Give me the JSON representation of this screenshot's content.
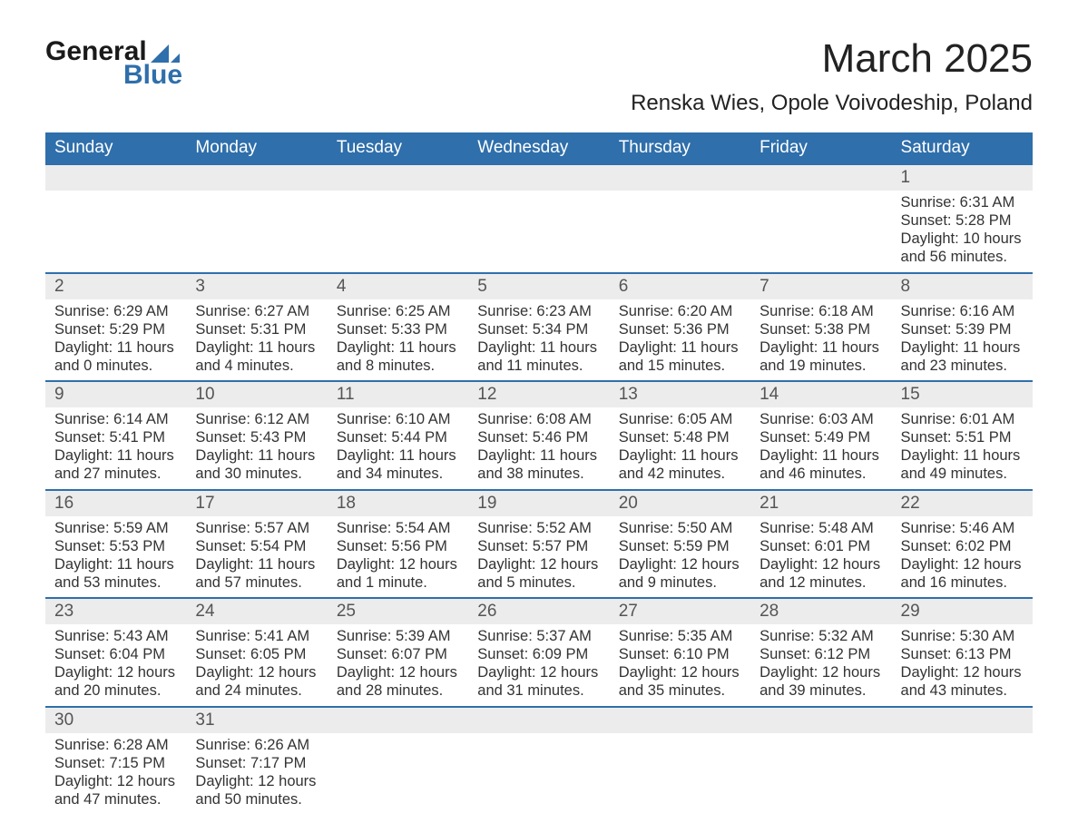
{
  "logo": {
    "line1": "General",
    "line2": "Blue",
    "icon_color": "#2f6fab"
  },
  "title": "March 2025",
  "location": "Renska Wies, Opole Voivodeship, Poland",
  "colors": {
    "header_bg": "#2f6fab",
    "header_text": "#ffffff",
    "daynum_bg": "#ececec",
    "row_divider": "#2f6fab",
    "body_text": "#333333",
    "page_bg": "#ffffff"
  },
  "typography": {
    "title_fontsize": 44,
    "location_fontsize": 24,
    "header_fontsize": 19,
    "daynum_fontsize": 19,
    "cell_fontsize": 16.5,
    "font_family": "Arial"
  },
  "calendar": {
    "type": "table",
    "columns": [
      "Sunday",
      "Monday",
      "Tuesday",
      "Wednesday",
      "Thursday",
      "Friday",
      "Saturday"
    ],
    "weeks": [
      [
        null,
        null,
        null,
        null,
        null,
        null,
        {
          "day": "1",
          "sunrise": "Sunrise: 6:31 AM",
          "sunset": "Sunset: 5:28 PM",
          "daylight1": "Daylight: 10 hours",
          "daylight2": "and 56 minutes."
        }
      ],
      [
        {
          "day": "2",
          "sunrise": "Sunrise: 6:29 AM",
          "sunset": "Sunset: 5:29 PM",
          "daylight1": "Daylight: 11 hours",
          "daylight2": "and 0 minutes."
        },
        {
          "day": "3",
          "sunrise": "Sunrise: 6:27 AM",
          "sunset": "Sunset: 5:31 PM",
          "daylight1": "Daylight: 11 hours",
          "daylight2": "and 4 minutes."
        },
        {
          "day": "4",
          "sunrise": "Sunrise: 6:25 AM",
          "sunset": "Sunset: 5:33 PM",
          "daylight1": "Daylight: 11 hours",
          "daylight2": "and 8 minutes."
        },
        {
          "day": "5",
          "sunrise": "Sunrise: 6:23 AM",
          "sunset": "Sunset: 5:34 PM",
          "daylight1": "Daylight: 11 hours",
          "daylight2": "and 11 minutes."
        },
        {
          "day": "6",
          "sunrise": "Sunrise: 6:20 AM",
          "sunset": "Sunset: 5:36 PM",
          "daylight1": "Daylight: 11 hours",
          "daylight2": "and 15 minutes."
        },
        {
          "day": "7",
          "sunrise": "Sunrise: 6:18 AM",
          "sunset": "Sunset: 5:38 PM",
          "daylight1": "Daylight: 11 hours",
          "daylight2": "and 19 minutes."
        },
        {
          "day": "8",
          "sunrise": "Sunrise: 6:16 AM",
          "sunset": "Sunset: 5:39 PM",
          "daylight1": "Daylight: 11 hours",
          "daylight2": "and 23 minutes."
        }
      ],
      [
        {
          "day": "9",
          "sunrise": "Sunrise: 6:14 AM",
          "sunset": "Sunset: 5:41 PM",
          "daylight1": "Daylight: 11 hours",
          "daylight2": "and 27 minutes."
        },
        {
          "day": "10",
          "sunrise": "Sunrise: 6:12 AM",
          "sunset": "Sunset: 5:43 PM",
          "daylight1": "Daylight: 11 hours",
          "daylight2": "and 30 minutes."
        },
        {
          "day": "11",
          "sunrise": "Sunrise: 6:10 AM",
          "sunset": "Sunset: 5:44 PM",
          "daylight1": "Daylight: 11 hours",
          "daylight2": "and 34 minutes."
        },
        {
          "day": "12",
          "sunrise": "Sunrise: 6:08 AM",
          "sunset": "Sunset: 5:46 PM",
          "daylight1": "Daylight: 11 hours",
          "daylight2": "and 38 minutes."
        },
        {
          "day": "13",
          "sunrise": "Sunrise: 6:05 AM",
          "sunset": "Sunset: 5:48 PM",
          "daylight1": "Daylight: 11 hours",
          "daylight2": "and 42 minutes."
        },
        {
          "day": "14",
          "sunrise": "Sunrise: 6:03 AM",
          "sunset": "Sunset: 5:49 PM",
          "daylight1": "Daylight: 11 hours",
          "daylight2": "and 46 minutes."
        },
        {
          "day": "15",
          "sunrise": "Sunrise: 6:01 AM",
          "sunset": "Sunset: 5:51 PM",
          "daylight1": "Daylight: 11 hours",
          "daylight2": "and 49 minutes."
        }
      ],
      [
        {
          "day": "16",
          "sunrise": "Sunrise: 5:59 AM",
          "sunset": "Sunset: 5:53 PM",
          "daylight1": "Daylight: 11 hours",
          "daylight2": "and 53 minutes."
        },
        {
          "day": "17",
          "sunrise": "Sunrise: 5:57 AM",
          "sunset": "Sunset: 5:54 PM",
          "daylight1": "Daylight: 11 hours",
          "daylight2": "and 57 minutes."
        },
        {
          "day": "18",
          "sunrise": "Sunrise: 5:54 AM",
          "sunset": "Sunset: 5:56 PM",
          "daylight1": "Daylight: 12 hours",
          "daylight2": "and 1 minute."
        },
        {
          "day": "19",
          "sunrise": "Sunrise: 5:52 AM",
          "sunset": "Sunset: 5:57 PM",
          "daylight1": "Daylight: 12 hours",
          "daylight2": "and 5 minutes."
        },
        {
          "day": "20",
          "sunrise": "Sunrise: 5:50 AM",
          "sunset": "Sunset: 5:59 PM",
          "daylight1": "Daylight: 12 hours",
          "daylight2": "and 9 minutes."
        },
        {
          "day": "21",
          "sunrise": "Sunrise: 5:48 AM",
          "sunset": "Sunset: 6:01 PM",
          "daylight1": "Daylight: 12 hours",
          "daylight2": "and 12 minutes."
        },
        {
          "day": "22",
          "sunrise": "Sunrise: 5:46 AM",
          "sunset": "Sunset: 6:02 PM",
          "daylight1": "Daylight: 12 hours",
          "daylight2": "and 16 minutes."
        }
      ],
      [
        {
          "day": "23",
          "sunrise": "Sunrise: 5:43 AM",
          "sunset": "Sunset: 6:04 PM",
          "daylight1": "Daylight: 12 hours",
          "daylight2": "and 20 minutes."
        },
        {
          "day": "24",
          "sunrise": "Sunrise: 5:41 AM",
          "sunset": "Sunset: 6:05 PM",
          "daylight1": "Daylight: 12 hours",
          "daylight2": "and 24 minutes."
        },
        {
          "day": "25",
          "sunrise": "Sunrise: 5:39 AM",
          "sunset": "Sunset: 6:07 PM",
          "daylight1": "Daylight: 12 hours",
          "daylight2": "and 28 minutes."
        },
        {
          "day": "26",
          "sunrise": "Sunrise: 5:37 AM",
          "sunset": "Sunset: 6:09 PM",
          "daylight1": "Daylight: 12 hours",
          "daylight2": "and 31 minutes."
        },
        {
          "day": "27",
          "sunrise": "Sunrise: 5:35 AM",
          "sunset": "Sunset: 6:10 PM",
          "daylight1": "Daylight: 12 hours",
          "daylight2": "and 35 minutes."
        },
        {
          "day": "28",
          "sunrise": "Sunrise: 5:32 AM",
          "sunset": "Sunset: 6:12 PM",
          "daylight1": "Daylight: 12 hours",
          "daylight2": "and 39 minutes."
        },
        {
          "day": "29",
          "sunrise": "Sunrise: 5:30 AM",
          "sunset": "Sunset: 6:13 PM",
          "daylight1": "Daylight: 12 hours",
          "daylight2": "and 43 minutes."
        }
      ],
      [
        {
          "day": "30",
          "sunrise": "Sunrise: 6:28 AM",
          "sunset": "Sunset: 7:15 PM",
          "daylight1": "Daylight: 12 hours",
          "daylight2": "and 47 minutes."
        },
        {
          "day": "31",
          "sunrise": "Sunrise: 6:26 AM",
          "sunset": "Sunset: 7:17 PM",
          "daylight1": "Daylight: 12 hours",
          "daylight2": "and 50 minutes."
        },
        null,
        null,
        null,
        null,
        null
      ]
    ]
  }
}
